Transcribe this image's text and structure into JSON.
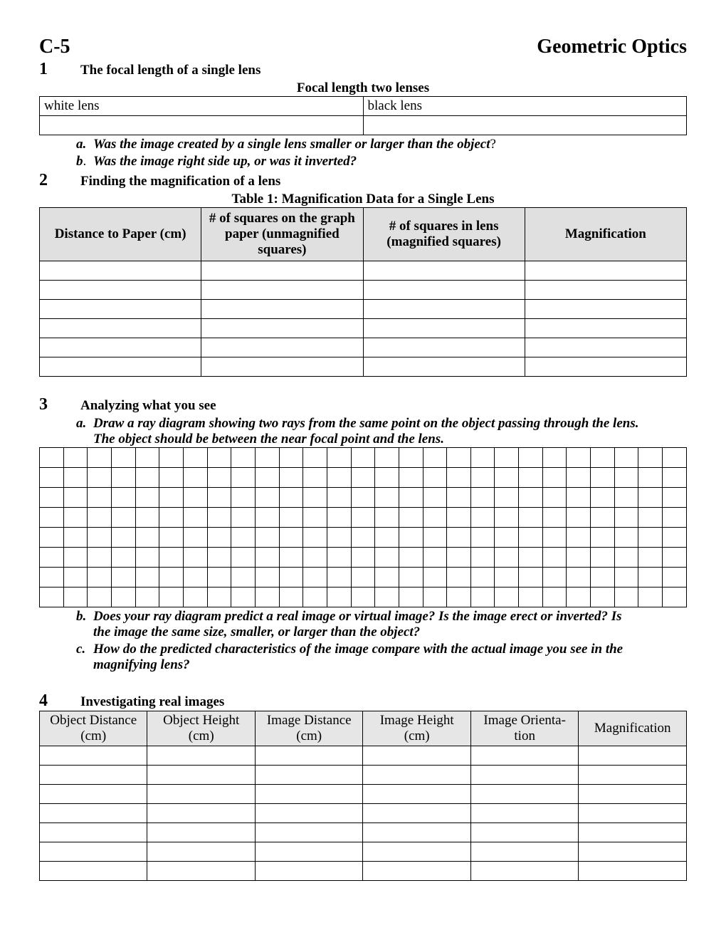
{
  "header": {
    "code": "C-5",
    "title": "Geometric Optics"
  },
  "section1": {
    "num": "1",
    "title": "The focal length of a single lens",
    "subtitle": "Focal length two lenses",
    "lens_table": {
      "left_label": "white lens",
      "right_label": "black lens"
    },
    "questions": {
      "a_label": "a.",
      "a_text": "Was the image created by a single lens smaller or larger than the object",
      "a_suffix": "?",
      "b_label": "b",
      "b_dot": ".",
      "b_text": "Was the image right side up, or was it inverted?"
    }
  },
  "section2": {
    "num": "2",
    "title": "Finding the magnification of a lens",
    "table_title": "Table 1: Magnification Data for a Single Lens",
    "columns": [
      "Distance to Paper (cm)",
      "# of squares on the graph paper (unmagni­fied squares)",
      "# of squares in lens (magnified squares)",
      "Magnification"
    ],
    "data_rows": 6
  },
  "section3": {
    "num": "3",
    "title": "Analyzing what you see",
    "questions": {
      "a_label": "a.",
      "a_text1": "Draw a ray diagram showing two rays from the same point on the object passing through the lens.",
      "a_text2": "The object should be between the near focal point and the lens.",
      "b_label": "b.",
      "b_text1": "Does your ray diagram predict a real image or virtual image?  Is the image erect or inverted?  Is",
      "b_text2": "the image the same size, smaller, or larger than the object?",
      "c_label": "c.",
      "c_text1": "How do the predicted characteristics of the image compare with the actual image you see in the",
      "c_text2": "magnifying lens?"
    },
    "grid": {
      "rows": 8,
      "cols": 27
    }
  },
  "section4": {
    "num": "4",
    "title": "Investigating real images",
    "columns": [
      "Object Distance (cm)",
      "Object Height (cm)",
      "Image Distance (cm)",
      "Image Height (cm)",
      "Image Orienta­tion",
      "Magnification"
    ],
    "data_rows": 7
  }
}
